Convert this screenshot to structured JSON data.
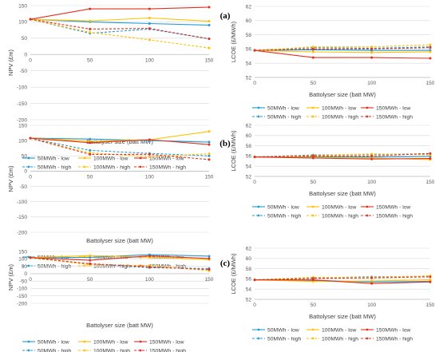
{
  "panel_labels": [
    "(a)",
    "(b)",
    "(c)"
  ],
  "chart_data": [
    {
      "type": "line",
      "panel": "(a)",
      "x": [
        0,
        50,
        100,
        150
      ],
      "xlabel": "Battolyser size (batt MW)",
      "ylabel": "NPV (£m)",
      "ylim": [
        -200,
        150
      ],
      "yticks": [
        -200,
        -150,
        -100,
        -50,
        0,
        50,
        100,
        150
      ],
      "grid": true,
      "legend_position": "bottom",
      "series": [
        {
          "name": "50MWh - low",
          "color": "#1f9bd7",
          "dash": false,
          "values": [
            108,
            100,
            95,
            90
          ]
        },
        {
          "name": "100MWh - low",
          "color": "#ffc000",
          "dash": false,
          "values": [
            108,
            103,
            112,
            102
          ]
        },
        {
          "name": "150MWh - low",
          "color": "#e0301e",
          "dash": false,
          "values": [
            108,
            140,
            140,
            145
          ]
        },
        {
          "name": "50MWh - high",
          "color": "#1f9bd7",
          "dash": true,
          "values": [
            108,
            65,
            78,
            48
          ]
        },
        {
          "name": "100MWh - high",
          "color": "#ffc000",
          "dash": true,
          "values": [
            108,
            68,
            45,
            20
          ]
        },
        {
          "name": "150MWh - high",
          "color": "#e0301e",
          "dash": true,
          "values": [
            108,
            78,
            80,
            48
          ]
        }
      ]
    },
    {
      "type": "line",
      "panel": "(a)",
      "x": [
        0,
        50,
        100,
        150
      ],
      "xlabel": "Battolyser size (batt MW)",
      "ylabel": "LCOE (£/MWh)",
      "ylim": [
        52,
        62
      ],
      "yticks": [
        52,
        54,
        56,
        58,
        60,
        62
      ],
      "grid": true,
      "legend_position": "bottom",
      "series": [
        {
          "name": "50MWh - low",
          "color": "#1f9bd7",
          "dash": false,
          "values": [
            55.8,
            55.9,
            55.8,
            55.8
          ]
        },
        {
          "name": "100MWh - low",
          "color": "#ffc000",
          "dash": false,
          "values": [
            55.8,
            55.6,
            55.5,
            55.6
          ]
        },
        {
          "name": "150MWh - low",
          "color": "#e0301e",
          "dash": false,
          "values": [
            55.8,
            54.8,
            54.8,
            54.7
          ]
        },
        {
          "name": "50MWh - high",
          "color": "#1f9bd7",
          "dash": true,
          "values": [
            55.8,
            56.2,
            56.1,
            56.3
          ]
        },
        {
          "name": "100MWh - high",
          "color": "#ffc000",
          "dash": true,
          "values": [
            55.8,
            56.3,
            56.3,
            56.6
          ]
        },
        {
          "name": "150MWh - high",
          "color": "#e0301e",
          "dash": true,
          "values": [
            55.8,
            56.0,
            56.0,
            56.2
          ]
        }
      ]
    },
    {
      "type": "line",
      "panel": "(b)",
      "x": [
        0,
        50,
        100,
        150
      ],
      "xlabel": "Battolyser size (batt MW)",
      "ylabel": "NPV (£m)",
      "ylim": [
        -200,
        150
      ],
      "yticks": [
        -200,
        -150,
        -100,
        -50,
        0,
        50,
        100,
        150
      ],
      "grid": true,
      "legend_position": "bottom",
      "series": [
        {
          "name": "50MWh - low",
          "color": "#1f9bd7",
          "dash": false,
          "values": [
            108,
            105,
            100,
            95
          ]
        },
        {
          "name": "100MWh - low",
          "color": "#ffc000",
          "dash": false,
          "values": [
            108,
            98,
            103,
            130
          ]
        },
        {
          "name": "150MWh - low",
          "color": "#e0301e",
          "dash": false,
          "values": [
            108,
            93,
            103,
            87
          ]
        },
        {
          "name": "50MWh - high",
          "color": "#1f9bd7",
          "dash": true,
          "values": [
            108,
            68,
            58,
            50
          ]
        },
        {
          "name": "100MWh - high",
          "color": "#ffc000",
          "dash": true,
          "values": [
            108,
            60,
            47,
            57
          ]
        },
        {
          "name": "150MWh - high",
          "color": "#e0301e",
          "dash": true,
          "values": [
            108,
            55,
            55,
            38
          ]
        }
      ]
    },
    {
      "type": "line",
      "panel": "(b)",
      "x": [
        0,
        50,
        100,
        150
      ],
      "xlabel": "Battolyser size (batt MW)",
      "ylabel": "LCOE (£/MWh)",
      "ylim": [
        52,
        62
      ],
      "yticks": [
        52,
        54,
        56,
        58,
        60,
        62
      ],
      "grid": true,
      "legend_position": "bottom",
      "series": [
        {
          "name": "50MWh - low",
          "color": "#1f9bd7",
          "dash": false,
          "values": [
            55.8,
            55.8,
            55.8,
            55.9
          ]
        },
        {
          "name": "100MWh - low",
          "color": "#ffc000",
          "dash": false,
          "values": [
            55.8,
            55.7,
            55.6,
            55.3
          ]
        },
        {
          "name": "150MWh - low",
          "color": "#e0301e",
          "dash": false,
          "values": [
            55.8,
            55.6,
            55.4,
            55.5
          ]
        },
        {
          "name": "50MWh - high",
          "color": "#1f9bd7",
          "dash": true,
          "values": [
            55.8,
            56.2,
            56.3,
            56.4
          ]
        },
        {
          "name": "100MWh - high",
          "color": "#ffc000",
          "dash": true,
          "values": [
            55.8,
            56.1,
            56.4,
            56.2
          ]
        },
        {
          "name": "150MWh - high",
          "color": "#e0301e",
          "dash": true,
          "values": [
            55.8,
            56.0,
            56.0,
            56.5
          ]
        }
      ]
    },
    {
      "type": "line",
      "panel": "(c)",
      "x": [
        0,
        50,
        100,
        150
      ],
      "xlabel": "Battolyser size (batt MW)",
      "ylabel": "NPV (£m)",
      "ylim": [
        -200,
        150
      ],
      "yticks": [
        -200,
        -150,
        -100,
        -50,
        0,
        50,
        100,
        150
      ],
      "grid": true,
      "legend_position": "bottom",
      "series": [
        {
          "name": "50MWh - low",
          "color": "#1f9bd7",
          "dash": false,
          "values": [
            108,
            110,
            128,
            118
          ]
        },
        {
          "name": "100MWh - low",
          "color": "#ffc000",
          "dash": false,
          "values": [
            108,
            122,
            110,
            95
          ]
        },
        {
          "name": "150MWh - low",
          "color": "#e0301e",
          "dash": false,
          "values": [
            108,
            90,
            120,
            102
          ]
        },
        {
          "name": "50MWh - high",
          "color": "#1f9bd7",
          "dash": true,
          "values": [
            108,
            65,
            40,
            35
          ]
        },
        {
          "name": "100MWh - high",
          "color": "#ffc000",
          "dash": true,
          "values": [
            108,
            60,
            55,
            20
          ]
        },
        {
          "name": "150MWh - high",
          "color": "#e0301e",
          "dash": true,
          "values": [
            108,
            67,
            45,
            28
          ]
        }
      ]
    },
    {
      "type": "line",
      "panel": "(c)",
      "x": [
        0,
        50,
        100,
        150
      ],
      "xlabel": "Battolyser size (batt MW)",
      "ylabel": "LCOE (£/MWh)",
      "ylim": [
        52,
        62
      ],
      "yticks": [
        52,
        54,
        56,
        58,
        60,
        62
      ],
      "grid": true,
      "legend_position": "bottom",
      "series": [
        {
          "name": "50MWh - low",
          "color": "#1f9bd7",
          "dash": false,
          "values": [
            55.8,
            55.7,
            55.4,
            55.5
          ]
        },
        {
          "name": "100MWh - low",
          "color": "#ffc000",
          "dash": false,
          "values": [
            55.8,
            55.5,
            55.6,
            55.8
          ]
        },
        {
          "name": "150MWh - low",
          "color": "#e0301e",
          "dash": false,
          "values": [
            55.8,
            55.8,
            55.1,
            55.4
          ]
        },
        {
          "name": "50MWh - high",
          "color": "#1f9bd7",
          "dash": true,
          "values": [
            55.8,
            56.2,
            56.4,
            56.5
          ]
        },
        {
          "name": "100MWh - high",
          "color": "#ffc000",
          "dash": true,
          "values": [
            55.8,
            56.3,
            56.3,
            56.6
          ]
        },
        {
          "name": "150MWh - high",
          "color": "#e0301e",
          "dash": true,
          "values": [
            55.8,
            56.1,
            56.2,
            56.4
          ]
        }
      ]
    }
  ]
}
